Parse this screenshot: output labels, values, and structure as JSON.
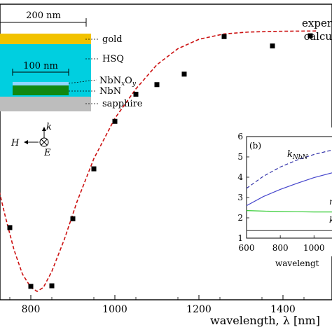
{
  "chart_data": [
    {
      "panel": "main",
      "type": "scatter",
      "xlabel": "wavelength, λ [nm]",
      "ylabel": "",
      "xlim": [
        700,
        1480
      ],
      "ylim": [
        0,
        1.0
      ],
      "xticks": [
        800,
        1000,
        1200,
        1400
      ],
      "legend": {
        "placement": "top-right",
        "entries": [
          "exper",
          "calcu"
        ]
      },
      "grid": false,
      "series": [
        {
          "name": "exper",
          "kind": "markers",
          "marker": "square",
          "color": "#000000",
          "x": [
            750,
            800,
            850,
            900,
            950,
            1000,
            1050,
            1100,
            1165,
            1260,
            1375,
            1465
          ],
          "y": [
            0.243,
            0.024,
            0.026,
            0.276,
            0.462,
            0.639,
            0.74,
            0.776,
            0.815,
            0.955,
            0.92,
            0.958
          ]
        },
        {
          "name": "calcu",
          "kind": "line",
          "style": "dashed",
          "color": "#cc1111",
          "x": [
            700,
            720,
            740,
            760,
            780,
            800,
            815,
            830,
            850,
            880,
            910,
            950,
            1000,
            1050,
            1100,
            1150,
            1200,
            1260,
            1320,
            1400,
            1480
          ],
          "y": [
            0.54,
            0.41,
            0.28,
            0.16,
            0.07,
            0.02,
            0.005,
            0.02,
            0.08,
            0.2,
            0.34,
            0.5,
            0.65,
            0.76,
            0.85,
            0.91,
            0.945,
            0.965,
            0.972,
            0.975,
            0.976
          ]
        }
      ]
    },
    {
      "panel": "inset",
      "label": "(b)",
      "type": "line",
      "xlabel": "wavelengt",
      "xlim": [
        600,
        1140
      ],
      "ylim": [
        1,
        6
      ],
      "xticks": [
        600,
        800,
        1000
      ],
      "yticks": [
        1,
        2,
        3,
        4,
        5,
        6
      ],
      "series": [
        {
          "name": "k_NbN",
          "style": "dashed",
          "color": "#3333aa",
          "x": [
            600,
            700,
            800,
            900,
            1000,
            1100,
            1140
          ],
          "y": [
            3.45,
            4.05,
            4.5,
            4.85,
            5.12,
            5.32,
            5.4
          ]
        },
        {
          "name": "",
          "style": "solid",
          "color": "#4444cc",
          "x": [
            600,
            700,
            800,
            900,
            1000,
            1100,
            1140
          ],
          "y": [
            2.6,
            3.05,
            3.4,
            3.7,
            3.98,
            4.2,
            4.28
          ]
        },
        {
          "name": "",
          "style": "solid",
          "color": "#33cc33",
          "x": [
            600,
            700,
            800,
            900,
            1000,
            1100,
            1140
          ],
          "y": [
            2.36,
            2.33,
            2.31,
            2.3,
            2.29,
            2.29,
            2.29
          ]
        },
        {
          "name": "",
          "style": "solid",
          "color": "#444444",
          "x": [
            600,
            1140
          ],
          "y": [
            1.37,
            1.37
          ]
        }
      ],
      "annotations": [
        {
          "text": "k",
          "sub": "NbN"
        },
        {
          "text": "n"
        },
        {
          "text": "k"
        }
      ]
    }
  ],
  "schematic": {
    "width_label": "200 nm",
    "inner_width_label": "100 nm",
    "layers": [
      {
        "label": "gold",
        "color": "#f2c200"
      },
      {
        "label": "HSQ",
        "color": "#00cfe0"
      },
      {
        "label": "NbN",
        "label_sub": "x",
        "label_rest": "O",
        "label_sub2": "y",
        "color": "#8fd6ff"
      },
      {
        "label": "NbN",
        "color": "#118811"
      },
      {
        "label": "sapphire",
        "color": "#bdbdbd"
      }
    ],
    "axes_symbols": {
      "k": "k",
      "H": "H",
      "E": "E"
    }
  }
}
